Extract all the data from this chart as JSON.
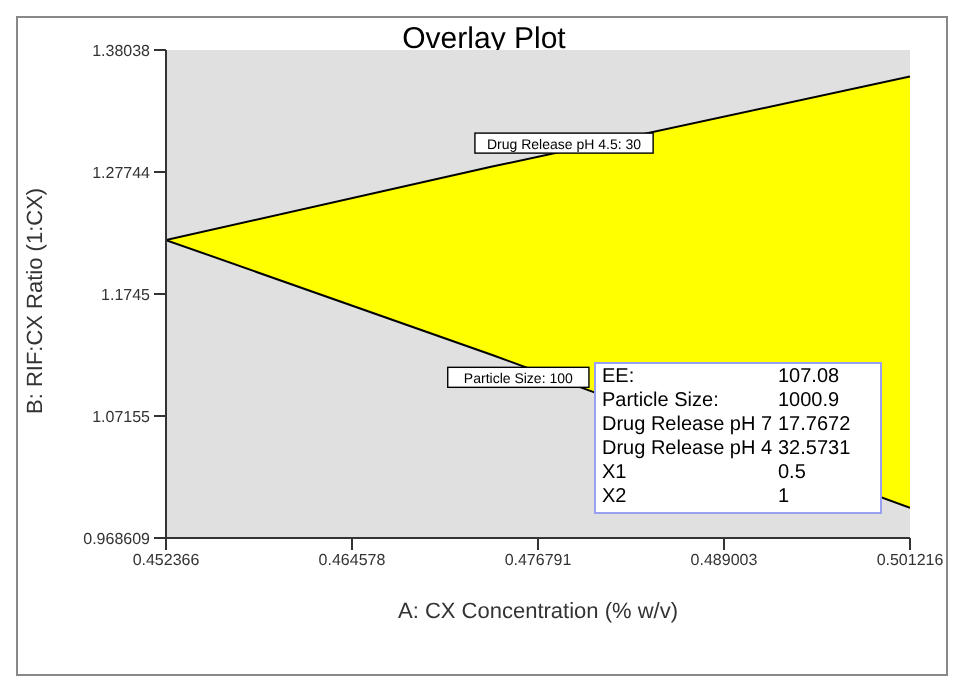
{
  "chart_data": {
    "type": "area",
    "title": "Overlay Plot",
    "xlabel": "A: CX Concentration (% w/v)",
    "ylabel": "B: RIF:CX Ratio (1:CX)",
    "x": [
      0.452366,
      0.473787,
      0.501216
    ],
    "series": [
      {
        "color": "#ffff00",
        "values": [
          1.22,
          1.282,
          1.358
        ]
      },
      {
        "color": "#e0e0e0",
        "values": [
          1.22,
          1.123,
          0.994
        ]
      }
    ],
    "xlim": [
      0.452366,
      0.501216
    ],
    "xticks": [
      0.452366,
      0.464578,
      0.476791,
      0.489003,
      0.501216
    ],
    "ylim": [
      0.968609,
      1.38038
    ],
    "yticks": [
      0.968609,
      1.07155,
      1.1745,
      1.27744,
      1.38038
    ],
    "grid": false,
    "annotations": [
      {
        "text": "Drug Release pH 4.5: 30",
        "x": 0.4785,
        "y": 1.29
      },
      {
        "text": "Particle Size: 100",
        "x": 0.4755,
        "y": 1.116
      },
      "EE:",
      "107.08",
      "Particle Size:",
      "1000.9",
      "Drug Release pH 7",
      "17.7672",
      "Drug Release pH 4",
      "32.5731",
      "X1",
      "0.5",
      "X2",
      "1"
    ]
  }
}
